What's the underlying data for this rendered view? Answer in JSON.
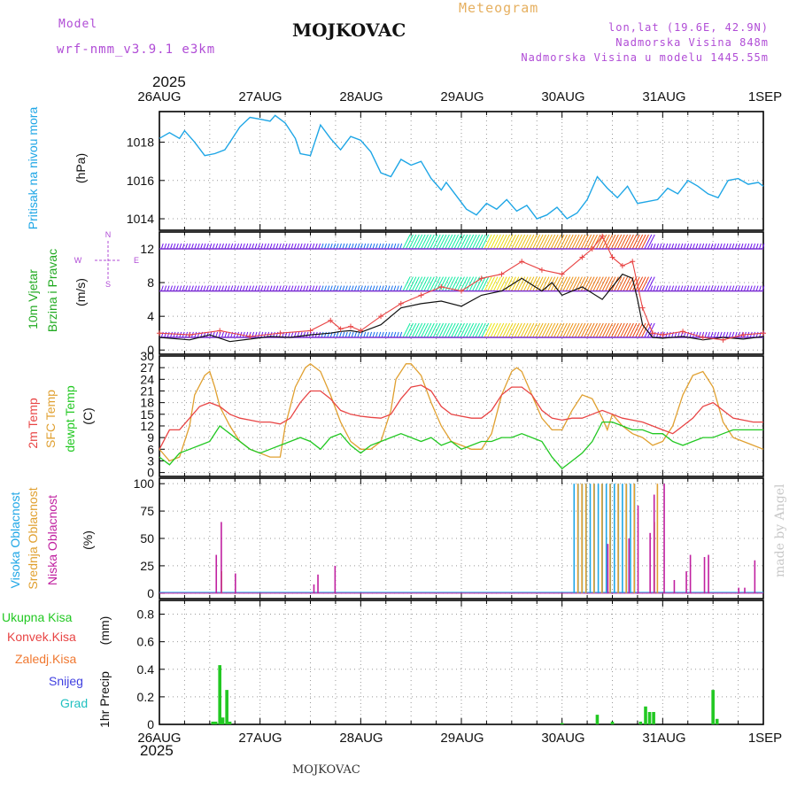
{
  "header": {
    "model_label": "Model",
    "model_name": "wrf-nmm_v3.9.1 e3km",
    "station": "MOJKOVAC",
    "meteogram_label": "Meteogram",
    "lonlat": "lon,lat (19.6E, 42.9N)",
    "elevation": "Nadmorska Visina 848m",
    "model_elevation": "Nadmorska Visina u modelu 1445.55m",
    "year_top": "2025",
    "year_bottom": "2025",
    "footer_station": "MOJKOVAC",
    "credit": "made by Angel"
  },
  "colors": {
    "pressure": "#1ea6e6",
    "temp2m": "#e84444",
    "sfc": "#e0a030",
    "dew": "#22c822",
    "wind_label": "#22aa22",
    "cloud_high": "#1ea6e6",
    "cloud_mid": "#e0a030",
    "cloud_low": "#c020a0",
    "precip_total": "#22c822",
    "precip_conv": "#e84444",
    "precip_frz": "#f07830",
    "precip_snow": "#4040e0",
    "precip_grad": "#20c0c0",
    "grid": "#999999",
    "compass": "#b04cd6"
  },
  "chart_data": [
    {
      "id": "pressure",
      "type": "line",
      "ylabel_title": "Pritisak na nivou mora",
      "ylabel_unit": "(hPa)",
      "ylim": [
        1013.4,
        1019.6
      ],
      "yticks": [
        1014,
        1016,
        1018
      ],
      "series": [
        {
          "name": "Pritisak",
          "x": [
            0,
            0.1,
            0.2,
            0.25,
            0.35,
            0.45,
            0.55,
            0.65,
            0.7,
            0.8,
            0.9,
            1.0,
            1.1,
            1.15,
            1.25,
            1.35,
            1.4,
            1.5,
            1.6,
            1.7,
            1.8,
            1.9,
            2.0,
            2.1,
            2.2,
            2.3,
            2.4,
            2.5,
            2.6,
            2.7,
            2.8,
            2.85,
            2.95,
            3.05,
            3.15,
            3.25,
            3.35,
            3.45,
            3.55,
            3.65,
            3.75,
            3.85,
            3.95,
            4.05,
            4.15,
            4.25,
            4.35,
            4.45,
            4.55,
            4.65,
            4.75,
            4.85,
            4.95,
            5.05,
            5.15,
            5.25,
            5.35,
            5.45,
            5.55,
            5.65,
            5.75,
            5.85,
            5.95,
            6.0
          ],
          "values": [
            1018.2,
            1018.5,
            1018.2,
            1018.6,
            1018.0,
            1017.3,
            1017.4,
            1017.6,
            1018.0,
            1018.8,
            1019.3,
            1019.2,
            1019.1,
            1019.4,
            1019.0,
            1018.2,
            1017.4,
            1017.3,
            1018.9,
            1018.2,
            1017.6,
            1018.3,
            1018.1,
            1017.5,
            1016.4,
            1016.2,
            1017.1,
            1016.8,
            1017.0,
            1016.1,
            1015.5,
            1015.9,
            1015.2,
            1014.5,
            1014.2,
            1014.8,
            1014.5,
            1015.0,
            1014.4,
            1014.7,
            1014.0,
            1014.2,
            1014.6,
            1014.0,
            1014.3,
            1015.0,
            1016.2,
            1015.6,
            1015.1,
            1015.7,
            1014.8,
            1014.9,
            1015.0,
            1015.6,
            1015.3,
            1016.0,
            1015.7,
            1015.3,
            1015.1,
            1016.0,
            1016.1,
            1015.8,
            1015.9,
            1015.7
          ]
        }
      ]
    },
    {
      "id": "wind",
      "type": "line",
      "ylabel_title": "10m Vjetar",
      "ylabel_sub": "Brzina i Pravac",
      "ylabel_unit": "(m/s)",
      "compass": {
        "n": "N",
        "s": "S",
        "w": "W",
        "e": "E"
      },
      "ylim": [
        -0.5,
        14
      ],
      "yticks": [
        0,
        4,
        8,
        12
      ],
      "barb_rows": [
        12,
        7,
        1.5
      ],
      "series": [
        {
          "name": "Brzina",
          "x": [
            0,
            0.3,
            0.5,
            0.7,
            0.9,
            1.1,
            1.3,
            1.5,
            1.7,
            1.8,
            1.9,
            2.0,
            2.2,
            2.4,
            2.6,
            2.8,
            3.0,
            3.2,
            3.4,
            3.6,
            3.8,
            3.9,
            4.0,
            4.2,
            4.4,
            4.6,
            4.7,
            4.75,
            4.8,
            4.9,
            5.0,
            5.2,
            5.4,
            5.6,
            5.8,
            6.0
          ],
          "values": [
            1.5,
            1.2,
            1.8,
            1.0,
            1.3,
            1.6,
            1.5,
            1.8,
            2.0,
            2.2,
            2.3,
            2.1,
            3.0,
            5.0,
            5.5,
            5.8,
            5.2,
            6.5,
            7.0,
            8.5,
            7.0,
            8.0,
            6.5,
            7.5,
            6.0,
            9.0,
            8.5,
            6.0,
            3.0,
            1.5,
            1.4,
            1.6,
            1.2,
            1.5,
            1.3,
            1.6
          ]
        },
        {
          "name": "Udar",
          "x": [
            0,
            0.3,
            0.6,
            0.9,
            1.2,
            1.5,
            1.7,
            1.8,
            1.9,
            2.0,
            2.2,
            2.4,
            2.6,
            2.8,
            3.0,
            3.2,
            3.4,
            3.6,
            3.8,
            4.0,
            4.2,
            4.3,
            4.4,
            4.5,
            4.6,
            4.7,
            4.8,
            4.9,
            5.0,
            5.2,
            5.4,
            5.6,
            5.8,
            6.0
          ],
          "values": [
            2.0,
            1.8,
            2.3,
            1.6,
            2.0,
            2.3,
            3.5,
            2.5,
            2.8,
            2.3,
            4.0,
            5.5,
            6.5,
            7.5,
            7.0,
            8.5,
            9.0,
            10.5,
            9.5,
            9.0,
            11.0,
            12.0,
            13.5,
            11.0,
            10.0,
            10.5,
            5.0,
            2.0,
            1.8,
            2.2,
            1.5,
            1.2,
            1.8,
            2.0
          ]
        }
      ]
    },
    {
      "id": "temperature",
      "type": "line",
      "ylabel_t1": "2m Temp",
      "ylabel_t2": "SFC Temp",
      "ylabel_t3": "dewpt Temp",
      "ylabel_unit": "(C)",
      "ylim": [
        -1,
        30
      ],
      "yticks": [
        0,
        3,
        6,
        9,
        12,
        15,
        18,
        21,
        24,
        27,
        30
      ],
      "series": [
        {
          "name": "2m Temp",
          "x": [
            0,
            0.1,
            0.2,
            0.3,
            0.4,
            0.5,
            0.6,
            0.7,
            0.8,
            0.9,
            1.0,
            1.1,
            1.2,
            1.3,
            1.4,
            1.5,
            1.6,
            1.7,
            1.8,
            1.9,
            2.0,
            2.1,
            2.2,
            2.3,
            2.4,
            2.5,
            2.6,
            2.7,
            2.8,
            2.9,
            3.0,
            3.1,
            3.2,
            3.3,
            3.4,
            3.5,
            3.6,
            3.7,
            3.8,
            3.9,
            4.0,
            4.1,
            4.2,
            4.3,
            4.4,
            4.5,
            4.6,
            4.7,
            4.8,
            4.9,
            5.0,
            5.1,
            5.2,
            5.3,
            5.4,
            5.5,
            5.6,
            5.7,
            5.8,
            5.9,
            6.0
          ],
          "values": [
            6,
            11,
            11,
            14,
            17,
            18,
            17,
            15,
            14,
            13.5,
            13,
            13,
            12.5,
            14,
            18,
            21,
            21,
            19,
            16,
            15,
            14.5,
            14.2,
            14,
            15,
            19,
            22,
            22.5,
            21,
            17,
            15,
            14.5,
            14,
            14,
            16,
            20,
            22,
            22,
            20,
            16,
            14,
            13.5,
            14,
            14,
            15,
            16,
            15,
            14,
            13.5,
            13,
            12,
            11,
            10,
            12,
            14,
            17,
            18,
            16,
            14,
            13.5,
            13,
            13
          ]
        },
        {
          "name": "SFC Temp",
          "x": [
            0,
            0.1,
            0.2,
            0.3,
            0.35,
            0.45,
            0.5,
            0.55,
            0.6,
            0.7,
            0.8,
            0.9,
            1.0,
            1.1,
            1.2,
            1.25,
            1.35,
            1.45,
            1.5,
            1.6,
            1.7,
            1.8,
            1.9,
            2.0,
            2.1,
            2.2,
            2.3,
            2.35,
            2.45,
            2.5,
            2.6,
            2.7,
            2.8,
            2.9,
            3.0,
            3.1,
            3.2,
            3.3,
            3.4,
            3.5,
            3.55,
            3.6,
            3.7,
            3.8,
            3.9,
            4.0,
            4.1,
            4.2,
            4.3,
            4.4,
            4.45,
            4.5,
            4.6,
            4.7,
            4.8,
            4.9,
            5.0,
            5.1,
            5.2,
            5.3,
            5.4,
            5.5,
            5.6,
            5.7,
            5.8,
            5.9,
            6.0
          ],
          "values": [
            6,
            3,
            4,
            12,
            20,
            25,
            26,
            22,
            17,
            12,
            8,
            6,
            5,
            4,
            4,
            12,
            22,
            27,
            28,
            26,
            20,
            13,
            8,
            6,
            6,
            8,
            16,
            24,
            28,
            28,
            25,
            18,
            12,
            8,
            7,
            6,
            6,
            10,
            20,
            26,
            27,
            26,
            20,
            14,
            11,
            11,
            16,
            20,
            19,
            14,
            11,
            15,
            12,
            10,
            9,
            7,
            8,
            12,
            20,
            25,
            26,
            22,
            13,
            9,
            8,
            7,
            6
          ]
        },
        {
          "name": "dewpt Temp",
          "x": [
            0,
            0.1,
            0.2,
            0.3,
            0.4,
            0.5,
            0.6,
            0.7,
            0.8,
            0.9,
            1.0,
            1.1,
            1.2,
            1.3,
            1.4,
            1.5,
            1.6,
            1.7,
            1.8,
            1.9,
            2.0,
            2.1,
            2.2,
            2.3,
            2.4,
            2.5,
            2.6,
            2.7,
            2.8,
            2.9,
            3.0,
            3.1,
            3.2,
            3.3,
            3.4,
            3.5,
            3.6,
            3.7,
            3.8,
            3.9,
            4.0,
            4.1,
            4.2,
            4.3,
            4.4,
            4.5,
            4.6,
            4.7,
            4.8,
            4.9,
            5.0,
            5.1,
            5.2,
            5.3,
            5.4,
            5.5,
            5.6,
            5.7,
            5.8,
            5.9,
            6.0
          ],
          "values": [
            4,
            2,
            5,
            6,
            7,
            8,
            12,
            10,
            8,
            6,
            5,
            6,
            7,
            8,
            9,
            8,
            6,
            9,
            10,
            7,
            5,
            7,
            8,
            9,
            10,
            9,
            8,
            9,
            7,
            8,
            6,
            7,
            8,
            8,
            9,
            9,
            10,
            9,
            8,
            4,
            1,
            3,
            5,
            8,
            13,
            13,
            12,
            11,
            11,
            10,
            10,
            8,
            7,
            8,
            9,
            9,
            10,
            11,
            11,
            11,
            11
          ]
        }
      ]
    },
    {
      "id": "clouds",
      "type": "bar",
      "ylabel_high": "Visoka Oblacnost",
      "ylabel_mid": "Srednja Oblacnost",
      "ylabel_low": "Niska Oblacnost",
      "ylabel_unit": "(%)",
      "ylim": [
        -5,
        105
      ],
      "yticks": [
        0,
        25,
        50,
        75,
        100
      ],
      "series": [
        {
          "name": "Visoka",
          "x": [
            4.12,
            4.16,
            4.2,
            4.24,
            4.28,
            4.32,
            4.36,
            4.4,
            4.44,
            4.48,
            4.52,
            4.56,
            4.6,
            4.64,
            4.68,
            4.72
          ],
          "values": [
            100,
            100,
            100,
            100,
            100,
            100,
            100,
            100,
            100,
            100,
            100,
            100,
            100,
            100,
            100,
            100
          ]
        },
        {
          "name": "Srednja",
          "x": [
            0.6,
            4.14,
            4.18,
            4.22,
            4.3,
            4.38,
            4.46,
            4.54,
            4.62,
            4.7,
            4.9,
            4.93
          ],
          "values": [
            20,
            100,
            100,
            100,
            100,
            100,
            100,
            100,
            100,
            100,
            65,
            100
          ]
        },
        {
          "name": "Niska",
          "x": [
            0.53,
            0.58,
            0.72,
            1.5,
            1.54,
            1.71,
            4.42,
            4.63,
            4.72,
            4.84,
            4.88,
            4.98,
            5.08,
            5.2,
            5.24,
            5.38,
            5.42,
            5.72,
            5.78,
            5.88
          ],
          "values": [
            35,
            65,
            18,
            8,
            17,
            25,
            45,
            50,
            80,
            55,
            90,
            100,
            12,
            20,
            35,
            33,
            35,
            5,
            5,
            30
          ]
        }
      ]
    },
    {
      "id": "precip",
      "type": "bar",
      "ylabel_title": "1hr Precip",
      "ylabel_unit": "(mm)",
      "legend": [
        "Ukupna Kisa",
        "Konvek.Kisa",
        "Zaledj.Kisa",
        "Snijeg",
        "Grad"
      ],
      "ylim": [
        0,
        0.9
      ],
      "yticks": [
        0,
        0.2,
        0.4,
        0.6,
        0.8
      ],
      "series": [
        {
          "name": "Ukupna Kisa",
          "x": [
            0.53,
            0.56,
            0.6,
            0.63,
            0.67,
            0.7,
            4.0,
            4.35,
            4.5,
            4.78,
            4.83,
            4.87,
            4.91,
            5.5,
            5.54
          ],
          "values": [
            0.02,
            0.02,
            0.43,
            0.05,
            0.25,
            0.02,
            0.01,
            0.07,
            0.02,
            0.02,
            0.13,
            0.09,
            0.09,
            0.25,
            0.04
          ]
        }
      ]
    }
  ],
  "time_axis": {
    "labels": [
      "26AUG",
      "27AUG",
      "28AUG",
      "29AUG",
      "30AUG",
      "31AUG",
      "1SEP"
    ]
  }
}
